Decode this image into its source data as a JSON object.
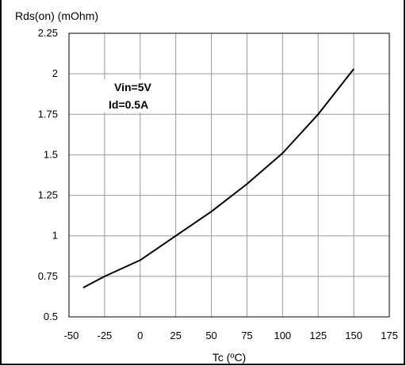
{
  "chart_data": {
    "type": "line",
    "ylabel": "Rds(on) (mOhm)",
    "xlabel": "Tc (ºC)",
    "xlim": [
      -50,
      175
    ],
    "ylim": [
      0.5,
      2.25
    ],
    "xticks": [
      -50,
      -25,
      0,
      25,
      50,
      75,
      100,
      125,
      150,
      175
    ],
    "yticks": [
      0.5,
      0.75,
      1,
      1.25,
      1.5,
      1.75,
      2,
      2.25
    ],
    "xtick_labels": [
      "-50",
      "-25",
      "0",
      "25",
      "50",
      "75",
      "100",
      "125",
      "150",
      "175"
    ],
    "ytick_labels": [
      "0.5",
      "0.75",
      "1",
      "1.25",
      "1.5",
      "1.75",
      "2",
      "2.25"
    ],
    "grid": true,
    "annotations": [
      "Vin=5V",
      "Id=0.5A"
    ],
    "series": [
      {
        "color": "#000000",
        "x": [
          -40,
          -25,
          0,
          25,
          50,
          75,
          100,
          125,
          150
        ],
        "y": [
          0.68,
          0.75,
          0.85,
          1.0,
          1.15,
          1.32,
          1.51,
          1.75,
          2.03
        ]
      }
    ]
  }
}
